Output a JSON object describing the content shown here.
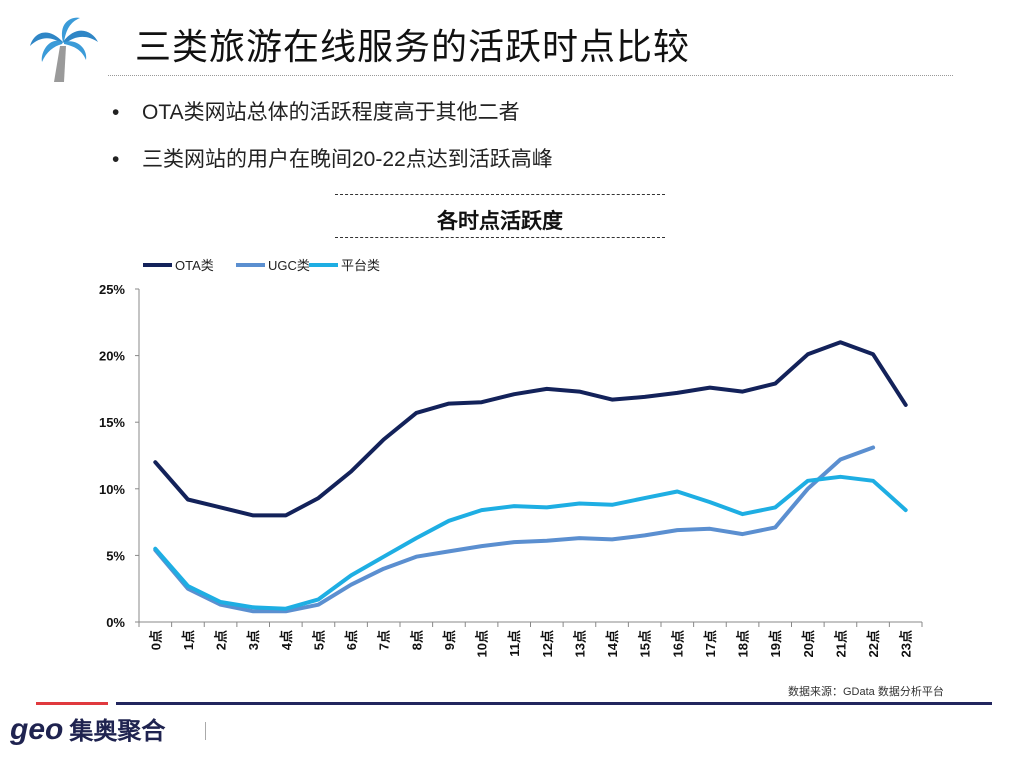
{
  "header": {
    "title": "三类旅游在线服务的活跃时点比较",
    "logo_icon": "palm-tree-icon"
  },
  "bullets": [
    "OTA类网站总体的活跃程度高于其他二者",
    "三类网站的用户在晚间20-22点达到活跃高峰"
  ],
  "bullet_marker": "•",
  "watermark": "geo集奥聚合",
  "footer": {
    "source": "数据来源：GData 数据分析平台",
    "logo_latin": "geo",
    "logo_cn": "集奥聚合",
    "accent_red": "#e0393e",
    "accent_navy": "#22265e"
  },
  "chart_data": {
    "type": "line",
    "title": "各时点活跃度",
    "xlabel": "",
    "ylabel": "",
    "ylim": [
      0,
      25
    ],
    "yticks": [
      "0%",
      "5%",
      "10%",
      "15%",
      "20%",
      "25%"
    ],
    "ytick_values": [
      0,
      5,
      10,
      15,
      20,
      25
    ],
    "grid": false,
    "legend": "top-left",
    "categories": [
      "0点",
      "1点",
      "2点",
      "3点",
      "4点",
      "5点",
      "6点",
      "7点",
      "8点",
      "9点",
      "10点",
      "11点",
      "12点",
      "13点",
      "14点",
      "15点",
      "16点",
      "17点",
      "18点",
      "19点",
      "20点",
      "21点",
      "22点",
      "23点"
    ],
    "series": [
      {
        "name": "OTA类",
        "color": "#13225a",
        "values": [
          12.0,
          9.2,
          8.6,
          8.0,
          8.0,
          9.3,
          11.3,
          13.7,
          15.7,
          16.4,
          16.5,
          17.1,
          17.5,
          17.3,
          16.7,
          16.9,
          17.2,
          17.6,
          17.3,
          17.9,
          20.1,
          21.0,
          20.1,
          16.3
        ]
      },
      {
        "name": "UGC类",
        "color": "#5b8fd0",
        "values": [
          5.4,
          2.5,
          1.3,
          0.8,
          0.8,
          1.3,
          2.8,
          4.0,
          4.9,
          5.3,
          5.7,
          6.0,
          6.1,
          6.3,
          6.2,
          6.5,
          6.9,
          7.0,
          6.6,
          7.1,
          10.0,
          12.2,
          13.1,
          null
        ]
      },
      {
        "name": "平台类",
        "color": "#1eaee3",
        "values": [
          5.5,
          2.7,
          1.5,
          1.1,
          1.0,
          1.7,
          3.5,
          4.9,
          6.3,
          7.6,
          8.4,
          8.7,
          8.6,
          8.9,
          8.8,
          9.3,
          9.8,
          9.0,
          8.1,
          8.6,
          10.6,
          10.9,
          10.6,
          8.4
        ]
      }
    ]
  }
}
